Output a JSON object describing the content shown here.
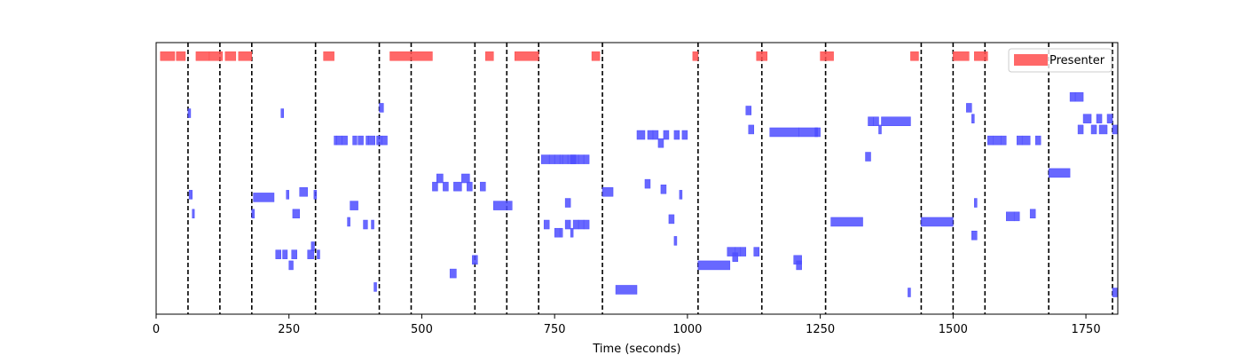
{
  "chart_data": {
    "type": "timeline",
    "xlabel": "Time (seconds)",
    "xlim": [
      0,
      1810
    ],
    "xticks": [
      0,
      250,
      500,
      750,
      1000,
      1250,
      1500,
      1750
    ],
    "grid": false,
    "legend": {
      "placement": "top-right",
      "entries": [
        {
          "name": "Presenter",
          "color": "#ff4d4d"
        }
      ]
    },
    "colors": {
      "presenter": "#ff4d4d",
      "other": "#4d4dff",
      "boundary": "#000000"
    },
    "boundaries": [
      60,
      120,
      180,
      300,
      420,
      480,
      600,
      660,
      720,
      840,
      1020,
      1140,
      1260,
      1440,
      1500,
      1560,
      1680,
      1800
    ],
    "series": [
      {
        "name": "Presenter",
        "row": 9.5,
        "segments": [
          [
            8,
            35
          ],
          [
            38,
            55
          ],
          [
            75,
            100
          ],
          [
            100,
            125
          ],
          [
            130,
            150
          ],
          [
            155,
            180
          ],
          [
            315,
            335
          ],
          [
            440,
            520
          ],
          [
            620,
            635
          ],
          [
            675,
            720
          ],
          [
            820,
            835
          ],
          [
            1010,
            1020
          ],
          [
            1130,
            1150
          ],
          [
            1250,
            1275
          ],
          [
            1420,
            1435
          ],
          [
            1500,
            1530
          ],
          [
            1540,
            1565
          ]
        ]
      },
      {
        "name": "",
        "color": "#4d4dff",
        "segments": [
          [
            60,
            65,
            7.4
          ],
          [
            62,
            68,
            4.4
          ],
          [
            68,
            72,
            3.7
          ],
          [
            180,
            185,
            3.7
          ],
          [
            183,
            222,
            4.3
          ],
          [
            235,
            240,
            7.4
          ],
          [
            225,
            235,
            2.2
          ],
          [
            238,
            247,
            2.2
          ],
          [
            245,
            250,
            4.4
          ],
          [
            250,
            258,
            1.8
          ],
          [
            255,
            265,
            2.2
          ],
          [
            257,
            270,
            3.7
          ],
          [
            270,
            285,
            4.5
          ],
          [
            285,
            297,
            2.2
          ],
          [
            292,
            298,
            2.5
          ],
          [
            297,
            302,
            4.4
          ],
          [
            303,
            308,
            2.2
          ],
          [
            335,
            340,
            6.4
          ],
          [
            340,
            350,
            6.4
          ],
          [
            350,
            360,
            6.4
          ],
          [
            360,
            365,
            3.4
          ],
          [
            365,
            380,
            4.0
          ],
          [
            370,
            378,
            6.4
          ],
          [
            380,
            390,
            6.4
          ],
          [
            390,
            398,
            3.3
          ],
          [
            395,
            400,
            6.4
          ],
          [
            400,
            412,
            6.4
          ],
          [
            405,
            410,
            3.3
          ],
          [
            410,
            415,
            1.0
          ],
          [
            415,
            425,
            6.4
          ],
          [
            420,
            428,
            7.6
          ],
          [
            425,
            435,
            6.4
          ],
          [
            520,
            530,
            4.7
          ],
          [
            528,
            540,
            5.0
          ],
          [
            540,
            550,
            4.7
          ],
          [
            553,
            565,
            1.5
          ],
          [
            560,
            575,
            4.7
          ],
          [
            575,
            590,
            5.0
          ],
          [
            585,
            595,
            4.7
          ],
          [
            595,
            605,
            2.0
          ],
          [
            610,
            620,
            4.7
          ],
          [
            635,
            670,
            4.0
          ],
          [
            725,
            740,
            5.7
          ],
          [
            740,
            750,
            5.7
          ],
          [
            750,
            760,
            5.7
          ],
          [
            760,
            765,
            5.7
          ],
          [
            765,
            775,
            5.7
          ],
          [
            770,
            780,
            4.1
          ],
          [
            775,
            790,
            5.7
          ],
          [
            780,
            795,
            5.7
          ],
          [
            795,
            805,
            5.7
          ],
          [
            805,
            815,
            5.7
          ],
          [
            730,
            740,
            3.3
          ],
          [
            750,
            760,
            3.0
          ],
          [
            760,
            765,
            3.0
          ],
          [
            770,
            780,
            3.3
          ],
          [
            780,
            785,
            3.0
          ],
          [
            785,
            795,
            3.3
          ],
          [
            795,
            805,
            3.3
          ],
          [
            805,
            815,
            3.3
          ],
          [
            840,
            860,
            4.5
          ],
          [
            865,
            905,
            0.9
          ],
          [
            905,
            920,
            6.6
          ],
          [
            920,
            930,
            4.8
          ],
          [
            925,
            935,
            6.6
          ],
          [
            935,
            945,
            6.6
          ],
          [
            945,
            955,
            6.3
          ],
          [
            950,
            960,
            4.6
          ],
          [
            955,
            965,
            6.6
          ],
          [
            965,
            975,
            3.5
          ],
          [
            975,
            985,
            6.6
          ],
          [
            975,
            980,
            2.7
          ],
          [
            985,
            990,
            4.4
          ],
          [
            990,
            1000,
            6.6
          ],
          [
            1020,
            1080,
            1.8
          ],
          [
            1075,
            1090,
            2.3
          ],
          [
            1085,
            1095,
            2.1
          ],
          [
            1090,
            1100,
            2.3
          ],
          [
            1100,
            1110,
            2.3
          ],
          [
            1110,
            1120,
            7.5
          ],
          [
            1115,
            1125,
            6.8
          ],
          [
            1125,
            1135,
            2.3
          ],
          [
            1155,
            1210,
            6.7
          ],
          [
            1200,
            1215,
            2.0
          ],
          [
            1205,
            1215,
            1.8
          ],
          [
            1210,
            1245,
            6.7
          ],
          [
            1240,
            1250,
            6.7
          ],
          [
            1270,
            1330,
            3.4
          ],
          [
            1335,
            1345,
            5.8
          ],
          [
            1340,
            1350,
            7.1
          ],
          [
            1350,
            1360,
            7.1
          ],
          [
            1360,
            1365,
            6.8
          ],
          [
            1365,
            1420,
            7.1
          ],
          [
            1415,
            1420,
            0.8
          ],
          [
            1440,
            1500,
            3.4
          ],
          [
            1525,
            1535,
            7.6
          ],
          [
            1535,
            1540,
            7.2
          ],
          [
            1540,
            1545,
            4.1
          ],
          [
            1535,
            1545,
            2.9
          ],
          [
            1565,
            1575,
            6.4
          ],
          [
            1575,
            1590,
            6.4
          ],
          [
            1590,
            1600,
            6.4
          ],
          [
            1600,
            1615,
            3.6
          ],
          [
            1615,
            1625,
            3.6
          ],
          [
            1620,
            1630,
            6.4
          ],
          [
            1630,
            1645,
            6.4
          ],
          [
            1645,
            1655,
            3.7
          ],
          [
            1655,
            1665,
            6.4
          ],
          [
            1680,
            1720,
            5.2
          ],
          [
            1720,
            1730,
            8.0
          ],
          [
            1730,
            1745,
            8.0
          ],
          [
            1735,
            1745,
            6.8
          ],
          [
            1745,
            1760,
            7.2
          ],
          [
            1760,
            1770,
            6.8
          ],
          [
            1770,
            1780,
            7.2
          ],
          [
            1775,
            1790,
            6.8
          ],
          [
            1790,
            1800,
            7.2
          ],
          [
            1800,
            1810,
            6.8
          ],
          [
            1800,
            1810,
            0.8
          ]
        ]
      }
    ]
  }
}
